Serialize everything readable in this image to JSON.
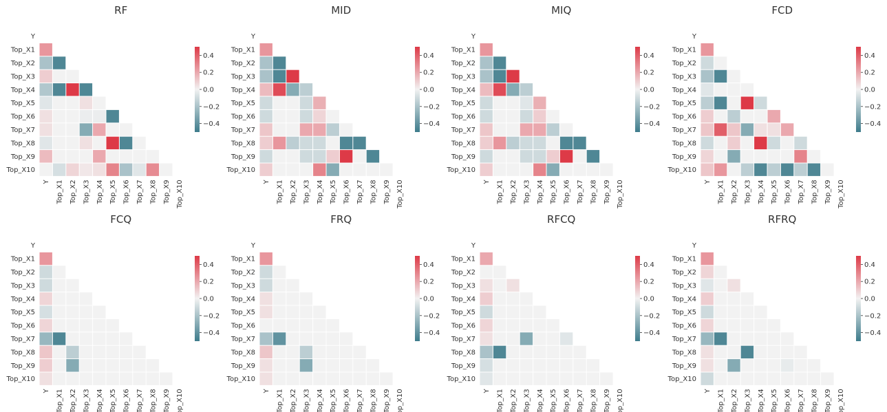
{
  "chart_data": {
    "type": "heatmap",
    "variables": [
      "Y",
      "Top_X1",
      "Top_X2",
      "Top_X3",
      "Top_X4",
      "Top_X5",
      "Top_X6",
      "Top_X7",
      "Top_X8",
      "Top_X9",
      "Top_X10"
    ],
    "mask": "upper-triangle-and-diagonal",
    "colormap": {
      "negative": "#3d7b8b",
      "zero": "#f2f2f2",
      "positive": "#dd3a47"
    },
    "value_range": [
      -0.5,
      0.5
    ],
    "colorbar_ticks": [
      0.4,
      0.2,
      0.0,
      -0.2,
      -0.4
    ],
    "colorbar_tick_labels": [
      "0.4",
      "0.2",
      "0.0",
      "−0.2",
      "−0.4"
    ],
    "panels": [
      {
        "title": "RF",
        "matrix": [
          [],
          [
            0.25
          ],
          [
            -0.2,
            -0.45
          ],
          [
            0.1,
            0,
            0
          ],
          [
            -0.18,
            -0.45,
            0.5,
            -0.45
          ],
          [
            -0.05,
            0,
            0,
            0.05,
            0
          ],
          [
            0.05,
            0,
            0,
            -0.02,
            -0.02,
            -0.45
          ],
          [
            0.05,
            0,
            0,
            -0.3,
            0.2,
            0,
            0
          ],
          [
            -0.05,
            0,
            0,
            0.05,
            0,
            0.5,
            -0.45,
            0
          ],
          [
            0.15,
            0,
            0,
            0,
            0.2,
            0,
            0,
            0,
            0
          ],
          [
            0,
            -0.08,
            0.08,
            0.03,
            0.05,
            0.3,
            -0.2,
            -0.05,
            0.28,
            0
          ]
        ]
      },
      {
        "title": "MID",
        "matrix": [
          [],
          [
            0.25
          ],
          [
            -0.2,
            -0.45
          ],
          [
            -0.2,
            -0.45,
            0.5
          ],
          [
            0.15,
            0.45,
            -0.3,
            -0.15
          ],
          [
            -0.1,
            0,
            0,
            -0.1,
            0.18
          ],
          [
            -0.1,
            0,
            0,
            -0.1,
            0.08,
            0
          ],
          [
            0.12,
            0,
            0,
            0.2,
            0.2,
            -0.15,
            0
          ],
          [
            0.1,
            0.25,
            -0.15,
            -0.1,
            -0.1,
            0,
            -0.45,
            -0.45
          ],
          [
            -0.1,
            0,
            0,
            -0.1,
            -0.1,
            0.1,
            0.5,
            0,
            -0.45
          ],
          [
            0.1,
            0,
            0,
            0,
            0.3,
            -0.3,
            0,
            0,
            0,
            0
          ]
        ]
      },
      {
        "title": "MIQ",
        "matrix": [
          [],
          [
            0.25
          ],
          [
            -0.2,
            -0.45
          ],
          [
            -0.2,
            -0.45,
            0.5
          ],
          [
            0.15,
            0.45,
            -0.3,
            -0.15
          ],
          [
            -0.1,
            0,
            0,
            -0.05,
            0.18
          ],
          [
            -0.1,
            0,
            0,
            -0.1,
            0.1,
            0
          ],
          [
            0.12,
            0,
            0,
            0.2,
            0.2,
            -0.15,
            0
          ],
          [
            0.1,
            0.25,
            -0.15,
            -0.1,
            -0.1,
            0,
            -0.45,
            -0.45
          ],
          [
            -0.1,
            0,
            0,
            -0.1,
            -0.1,
            0.1,
            0.5,
            0,
            -0.45
          ],
          [
            0.1,
            0,
            0,
            0,
            0.3,
            -0.3,
            0,
            0,
            0,
            0
          ]
        ]
      },
      {
        "title": "FCD",
        "matrix": [
          [],
          [
            0.25
          ],
          [
            -0.1,
            0
          ],
          [
            -0.2,
            -0.45,
            0
          ],
          [
            -0.05,
            0,
            0,
            0
          ],
          [
            -0.15,
            -0.45,
            0,
            0.5,
            -0.1
          ],
          [
            0.1,
            0,
            -0.15,
            0,
            0,
            0.2
          ],
          [
            0.12,
            0.4,
            0.12,
            -0.3,
            0.05,
            0.05,
            0.2
          ],
          [
            -0.1,
            0,
            0.1,
            0,
            0.5,
            -0.1,
            0,
            -0.1
          ],
          [
            0.08,
            0,
            -0.3,
            0,
            0,
            0,
            0,
            0.3,
            0
          ],
          [
            0.12,
            0.25,
            0,
            -0.15,
            -0.45,
            -0.15,
            -0.45,
            -0.15,
            -0.45,
            0
          ]
        ]
      },
      {
        "title": "FCQ",
        "matrix": [
          [],
          [
            0.25
          ],
          [
            -0.1,
            0
          ],
          [
            -0.1,
            0,
            0
          ],
          [
            0.08,
            0,
            0,
            0
          ],
          [
            -0.08,
            0,
            0,
            0,
            0
          ],
          [
            0.08,
            0,
            0,
            0,
            0,
            0
          ],
          [
            -0.25,
            -0.45,
            0,
            0,
            0,
            0,
            0
          ],
          [
            0.12,
            0,
            -0.15,
            0,
            0,
            0,
            0,
            0
          ],
          [
            0.1,
            0,
            -0.3,
            0,
            0,
            0,
            0,
            0,
            0
          ],
          [
            0.05,
            0,
            0,
            0,
            0,
            0,
            0,
            0,
            0,
            0
          ]
        ]
      },
      {
        "title": "FRQ",
        "matrix": [
          [],
          [
            0.25
          ],
          [
            -0.1,
            0
          ],
          [
            -0.1,
            0,
            0
          ],
          [
            0.05,
            0,
            0,
            0
          ],
          [
            0.05,
            0,
            0,
            0,
            0
          ],
          [
            0,
            0,
            0,
            0,
            0,
            0
          ],
          [
            -0.2,
            -0.4,
            0,
            0,
            0,
            0,
            0
          ],
          [
            0.12,
            0,
            0,
            -0.15,
            0,
            0,
            0,
            0
          ],
          [
            0.05,
            0,
            0,
            -0.3,
            0,
            0,
            0,
            0,
            0
          ],
          [
            0.05,
            0,
            0,
            0,
            0,
            0,
            0,
            0,
            0,
            0
          ]
        ]
      },
      {
        "title": "RFCQ",
        "matrix": [
          [],
          [
            0.2
          ],
          [
            0,
            0
          ],
          [
            0.05,
            0,
            0.05
          ],
          [
            0.1,
            0,
            0,
            0
          ],
          [
            -0.1,
            0,
            0,
            0,
            0
          ],
          [
            0.08,
            0,
            0,
            0,
            0,
            0
          ],
          [
            0.05,
            0,
            0,
            -0.3,
            0,
            0,
            -0.05
          ],
          [
            -0.2,
            -0.45,
            0,
            0,
            0,
            0,
            0,
            0
          ],
          [
            -0.08,
            0,
            0,
            0,
            0,
            0,
            0,
            0,
            0
          ],
          [
            -0.05,
            0,
            0,
            0,
            0,
            0,
            0,
            0,
            0,
            0
          ]
        ]
      },
      {
        "title": "RFRQ",
        "matrix": [
          [],
          [
            0.25
          ],
          [
            0.08,
            0
          ],
          [
            -0.05,
            0,
            0.05
          ],
          [
            0.1,
            0,
            0,
            0
          ],
          [
            -0.1,
            0,
            0,
            0,
            0
          ],
          [
            0.08,
            0,
            0,
            0,
            0,
            0
          ],
          [
            -0.25,
            -0.45,
            0,
            0,
            0,
            0,
            0
          ],
          [
            0.05,
            0,
            0,
            -0.45,
            0,
            0,
            0,
            0
          ],
          [
            0.05,
            0,
            -0.3,
            0,
            0,
            0,
            -0.03,
            0,
            0
          ],
          [
            -0.1,
            0,
            0,
            0,
            0,
            0,
            0,
            0,
            0,
            0
          ]
        ]
      }
    ]
  }
}
